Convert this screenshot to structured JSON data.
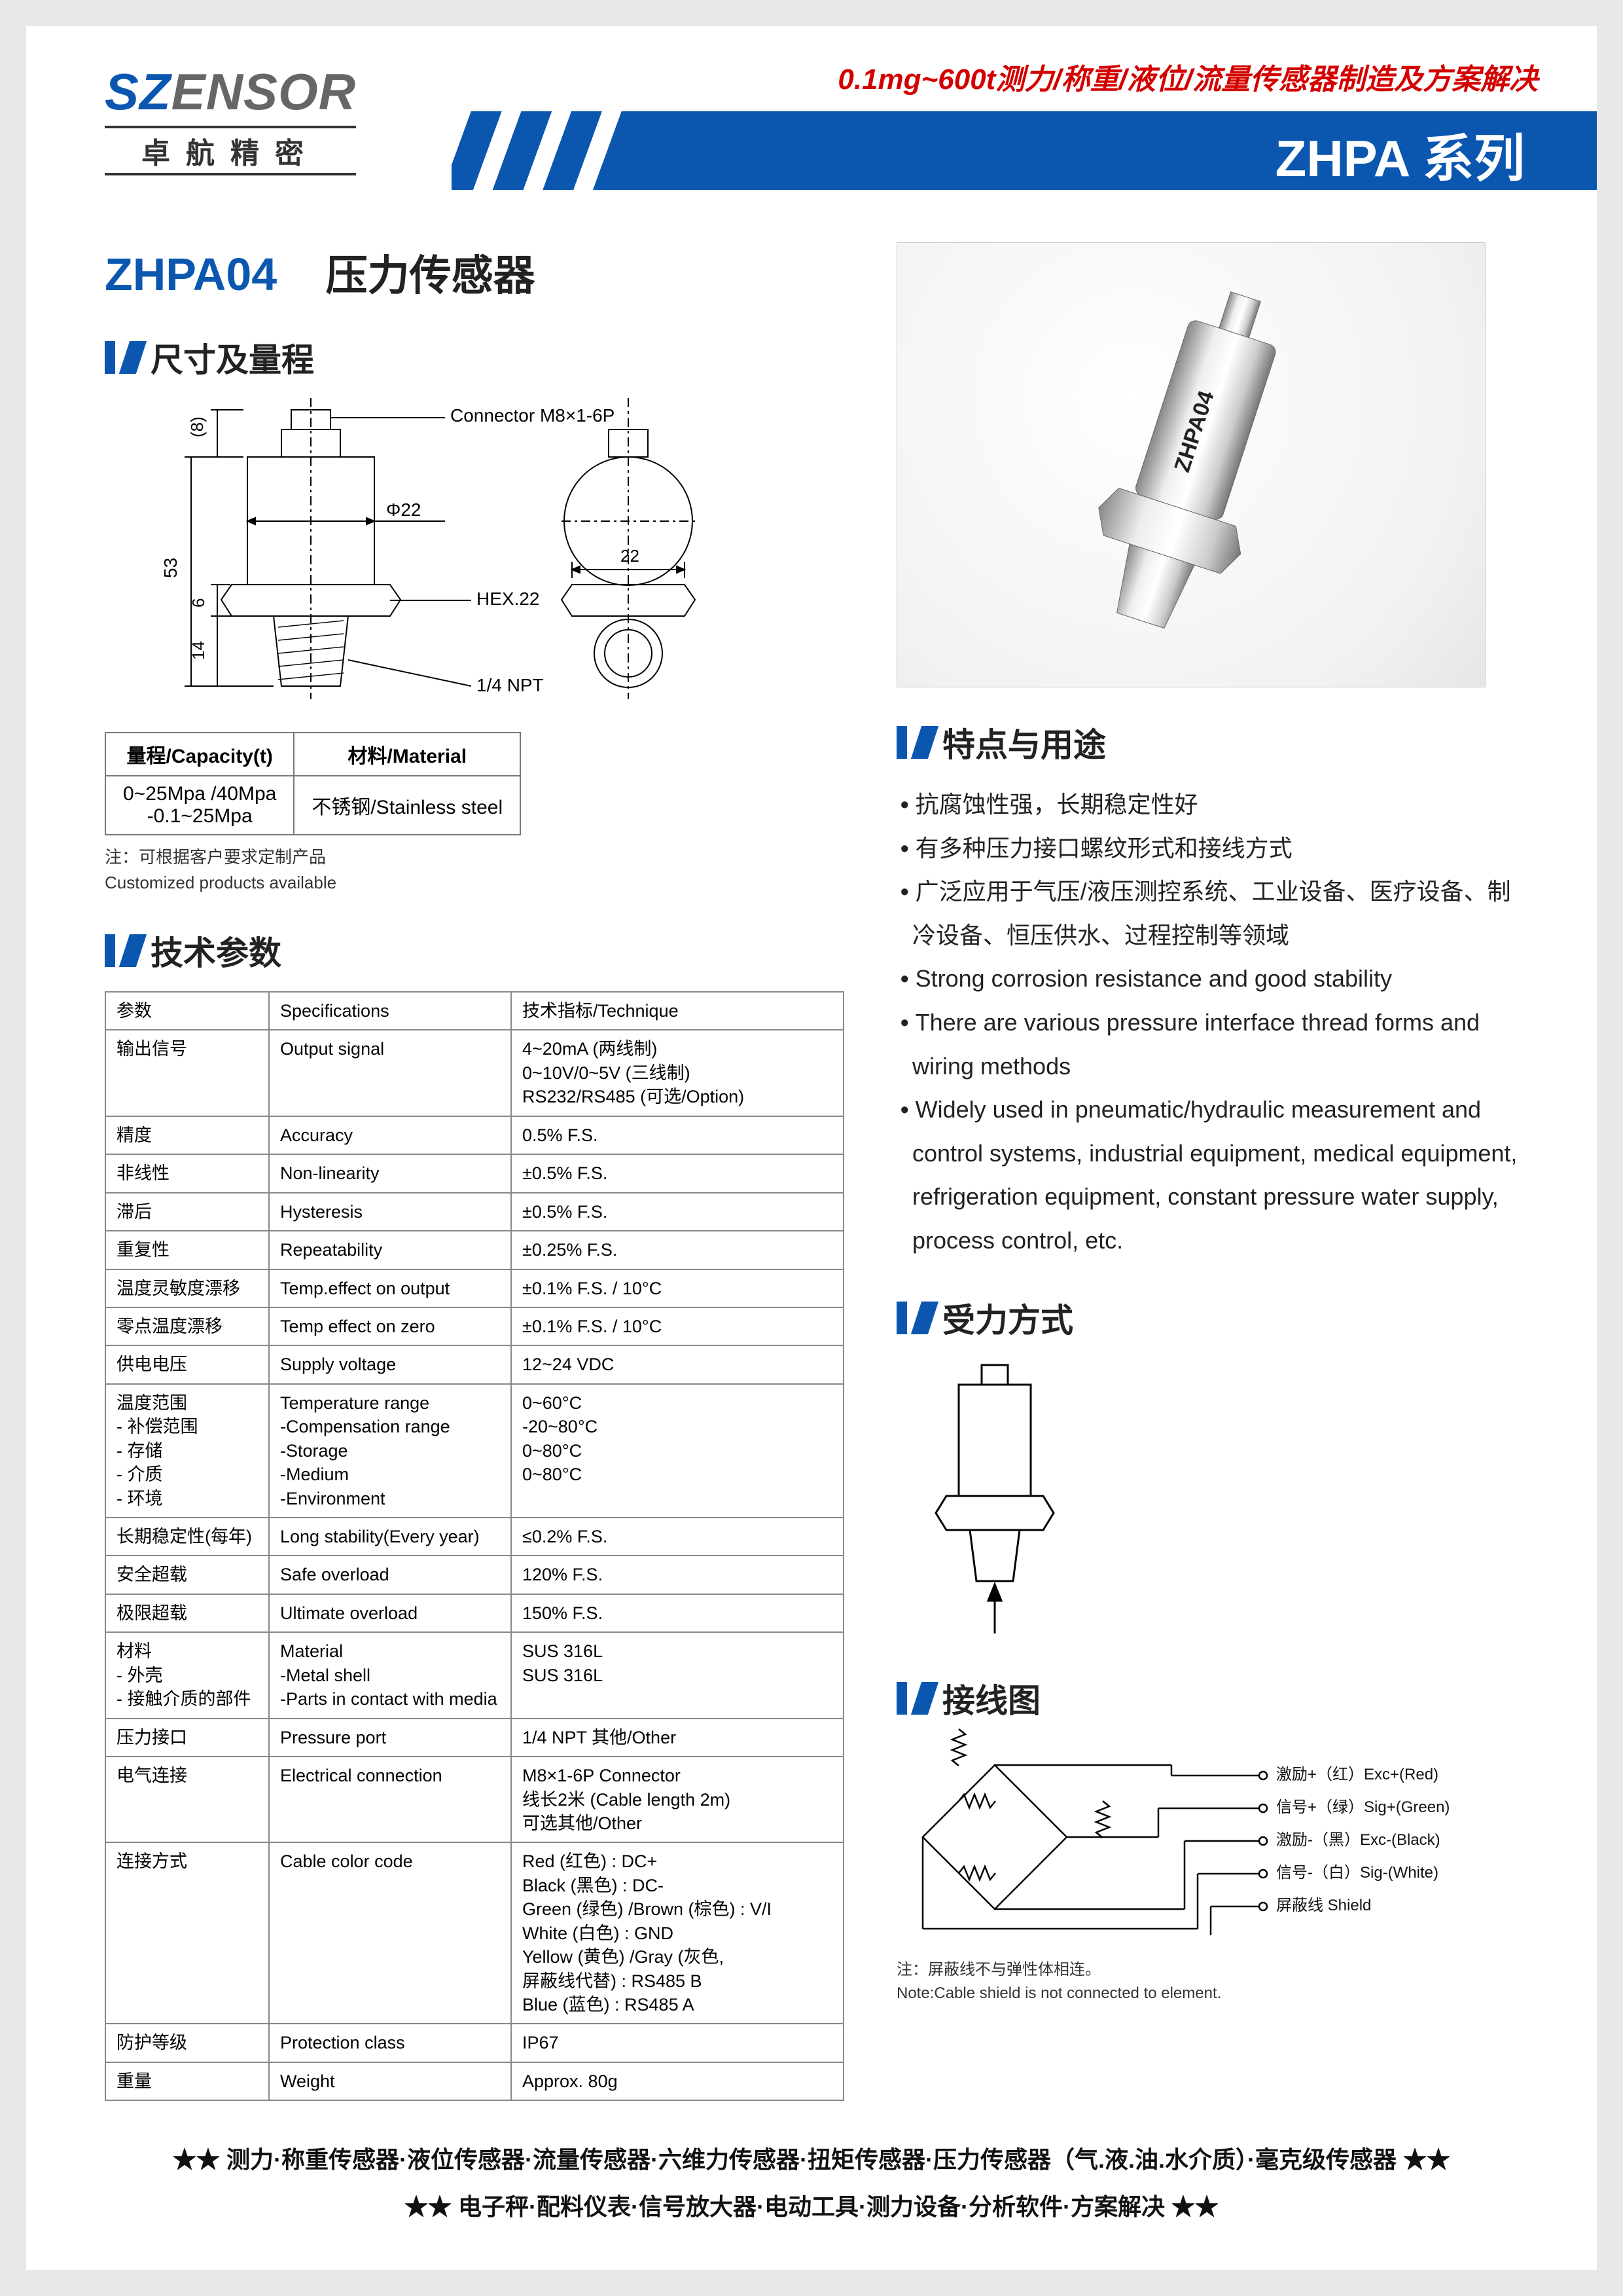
{
  "colors": {
    "brand": "#0b57b0",
    "accent": "#d40000",
    "text": "#222",
    "border": "#888"
  },
  "header": {
    "logo_brand_a": "SZ",
    "logo_brand_b": "ENSOR",
    "logo_sub": "卓航精密",
    "tagline": "0.1mg~600t测力/称重/液位/流量传感器制造及方案解决",
    "series": "ZHPA 系列"
  },
  "title": {
    "model": "ZHPA04",
    "name": "压力传感器"
  },
  "sections": {
    "dim": "尺寸及量程",
    "spec": "技术参数",
    "feat": "特点与用途",
    "force": "受力方式",
    "wiring": "接线图"
  },
  "dim": {
    "connector": "Connector M8×1-6P",
    "d22": "Φ22",
    "hex": "HEX.22",
    "thread": "1/4 NPT",
    "h8": "(8)",
    "h53": "53",
    "h6": "6",
    "h14": "14",
    "w22": "22"
  },
  "cap_table": {
    "headers": [
      "量程/Capacity(t)",
      "材料/Material"
    ],
    "rows": [
      [
        "0~25Mpa /40Mpa\n-0.1~25Mpa",
        "不锈钢/Stainless steel"
      ]
    ],
    "note1": "注：可根据客户要求定制产品",
    "note2": "Customized products available"
  },
  "spec_table": {
    "headers": [
      "参数",
      "Specifications",
      "技术指标/Technique"
    ],
    "rows": [
      [
        "输出信号",
        "Output signal",
        "4~20mA (两线制)\n0~10V/0~5V (三线制)\nRS232/RS485 (可选/Option)"
      ],
      [
        "精度",
        "Accuracy",
        "0.5% F.S."
      ],
      [
        "非线性",
        "Non-linearity",
        "±0.5% F.S."
      ],
      [
        "滞后",
        "Hysteresis",
        "±0.5% F.S."
      ],
      [
        "重复性",
        "Repeatability",
        "±0.25% F.S."
      ],
      [
        "温度灵敏度漂移",
        "Temp.effect on output",
        "±0.1% F.S. / 10°C"
      ],
      [
        "零点温度漂移",
        "Temp effect on zero",
        "±0.1% F.S. / 10°C"
      ],
      [
        "供电电压",
        "Supply voltage",
        "12~24 VDC"
      ],
      [
        "温度范围\n - 补偿范围\n - 存储\n - 介质\n - 环境",
        "Temperature range\n-Compensation range\n-Storage\n-Medium\n-Environment",
        "0~60°C\n-20~80°C\n0~80°C\n0~80°C"
      ],
      [
        "长期稳定性(每年)",
        "Long stability(Every year)",
        "≤0.2% F.S."
      ],
      [
        "安全超载",
        "Safe overload",
        "120% F.S."
      ],
      [
        "极限超载",
        "Ultimate overload",
        "150% F.S."
      ],
      [
        "材料\n - 外壳\n - 接触介质的部件",
        "Material\n-Metal shell\n-Parts in contact with media",
        "SUS 316L\nSUS 316L"
      ],
      [
        "压力接口",
        "Pressure port",
        "1/4 NPT 其他/Other"
      ],
      [
        "电气连接",
        "Electrical connection",
        "M8×1-6P Connector\n线长2米 (Cable length 2m)\n可选其他/Other"
      ],
      [
        "连接方式",
        "Cable color code",
        "Red (红色) : DC+\nBlack (黑色) : DC-\nGreen (绿色) /Brown (棕色) : V/I\nWhite (白色) : GND\nYellow (黄色) /Gray (灰色, \n屏蔽线代替) : RS485 B\nBlue (蓝色) : RS485 A"
      ],
      [
        "防护等级",
        "Protection class",
        "IP67"
      ],
      [
        "重量",
        "Weight",
        "Approx. 80g"
      ]
    ]
  },
  "product_label": "ZHPA04",
  "features": [
    "抗腐蚀性强，长期稳定性好",
    "有多种压力接口螺纹形式和接线方式",
    "广泛应用于气压/液压测控系统、工业设备、医疗设备、制冷设备、恒压供水、过程控制等领域",
    "Strong corrosion resistance and good stability",
    "There are various pressure interface thread forms and wiring methods",
    "Widely used in pneumatic/hydraulic measurement and control systems, industrial equipment, medical equipment, refrigeration equipment, constant pressure water supply, process control, etc."
  ],
  "wiring": {
    "lines": [
      "激励+（红）Exc+(Red)",
      "信号+（绿）Sig+(Green)",
      "激励-（黑）Exc-(Black)",
      "信号-（白）Sig-(White)",
      "屏蔽线 Shield"
    ],
    "note_cn": "注：屏蔽线不与弹性体相连。",
    "note_en": "Note:Cable shield is not connected to element."
  },
  "footer": {
    "l1": "★★ 测力·称重传感器·液位传感器·流量传感器·六维力传感器·扭矩传感器·压力传感器（气.液.油.水介质）·毫克级传感器 ★★",
    "l2": "★★ 电子秤·配料仪表·信号放大器·电动工具·测力设备·分析软件·方案解决 ★★"
  }
}
